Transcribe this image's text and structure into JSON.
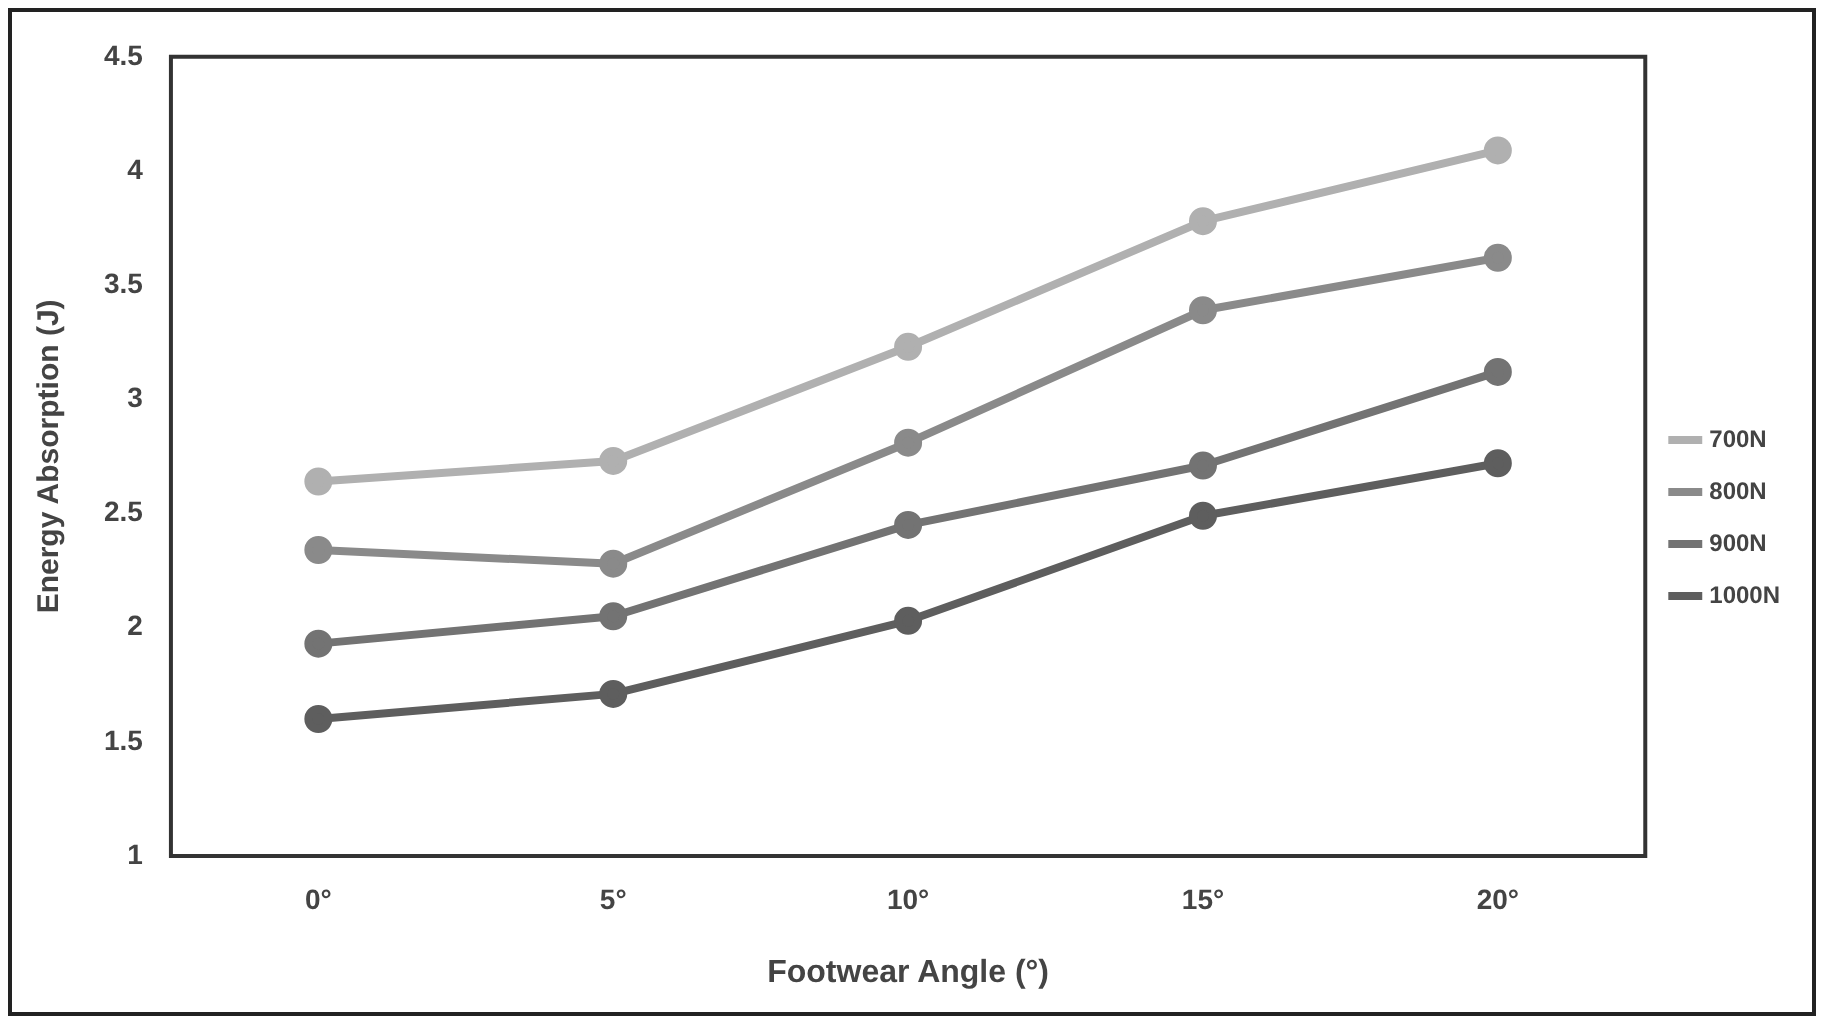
{
  "chart_data": {
    "type": "line",
    "xlabel": "Footwear Angle (°)",
    "ylabel": "Energy Absorption (J)",
    "categories": [
      "0°",
      "5°",
      "10°",
      "15°",
      "20°"
    ],
    "ylim": [
      1,
      4.5
    ],
    "yticks": [
      1,
      1.5,
      2,
      2.5,
      3,
      3.5,
      4,
      4.5
    ],
    "grid": false,
    "legend": "right",
    "marker": "circle",
    "line_style": "solid",
    "series": [
      {
        "name": "700N",
        "color": "#b0b0b0",
        "values": [
          2.64,
          2.73,
          3.23,
          3.78,
          4.09
        ]
      },
      {
        "name": "800N",
        "color": "#8a8a8a",
        "values": [
          2.34,
          2.28,
          2.81,
          3.39,
          3.62
        ]
      },
      {
        "name": "900N",
        "color": "#737373",
        "values": [
          1.93,
          2.05,
          2.45,
          2.71,
          3.12
        ]
      },
      {
        "name": "1000N",
        "color": "#5e5e5e",
        "values": [
          1.6,
          1.71,
          2.03,
          2.49,
          2.72
        ]
      }
    ]
  }
}
